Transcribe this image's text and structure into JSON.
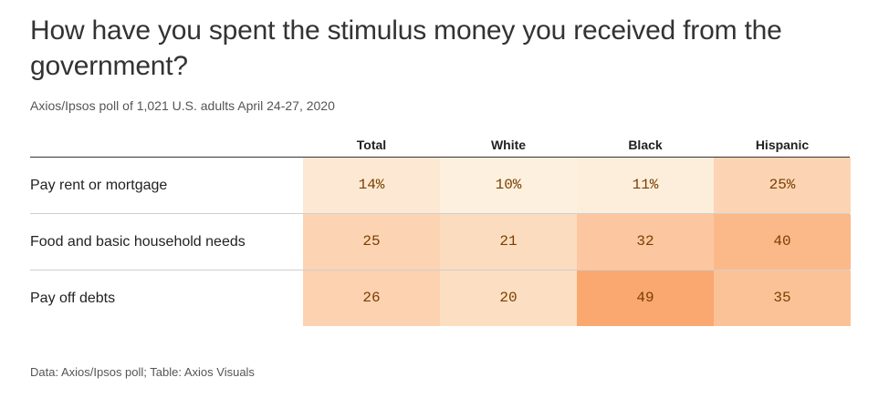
{
  "title": "How have you spent the stimulus money you received from the government?",
  "subtitle": "Axios/Ipsos poll of 1,021 U.S. adults April 24-27, 2020",
  "source": "Data: Axios/Ipsos poll; Table: Axios Visuals",
  "chart_data": {
    "type": "table",
    "title": "How have you spent the stimulus money you received from the government?",
    "columns": [
      "Total",
      "White",
      "Black",
      "Hispanic"
    ],
    "rows": [
      {
        "label": "Pay rent or mortgage",
        "values": [
          14,
          10,
          11,
          25
        ],
        "display": [
          "14%",
          "10%",
          "11%",
          "25%"
        ]
      },
      {
        "label": "Food and basic household needs",
        "values": [
          25,
          21,
          32,
          40
        ],
        "display": [
          "25",
          "21",
          "32",
          "40"
        ]
      },
      {
        "label": "Pay off debts",
        "values": [
          26,
          20,
          49,
          35
        ],
        "display": [
          "26",
          "20",
          "49",
          "35"
        ]
      }
    ],
    "color_scale": {
      "low": "#fdf0de",
      "high": "#fba870"
    }
  }
}
